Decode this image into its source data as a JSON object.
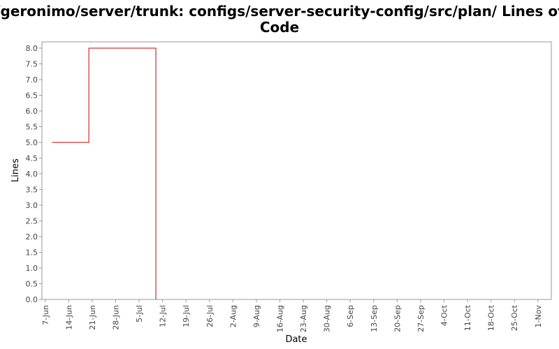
{
  "chart_data": {
    "type": "line",
    "title_lines": [
      "/geronimo/server/trunk: configs/server-security-config/src/plan/ Lines of",
      "Code"
    ],
    "xlabel": "Date",
    "ylabel": "Lines",
    "x_tick_labels": [
      "7-Jun",
      "14-Jun",
      "21-Jun",
      "28-Jun",
      "5-Jul",
      "12-Jul",
      "19-Jul",
      "26-Jul",
      "2-Aug",
      "9-Aug",
      "16-Aug",
      "23-Aug",
      "30-Aug",
      "6-Sep",
      "13-Sep",
      "20-Sep",
      "27-Sep",
      "4-Oct",
      "11-Oct",
      "18-Oct",
      "25-Oct",
      "1-Nov"
    ],
    "y_tick_labels": [
      "0.0",
      "0.5",
      "1.0",
      "1.5",
      "2.0",
      "2.5",
      "3.0",
      "3.5",
      "4.0",
      "4.5",
      "5.0",
      "5.5",
      "6.0",
      "6.5",
      "7.0",
      "7.5",
      "8.0"
    ],
    "ylim": [
      0,
      8.2
    ],
    "xlim": [
      "2007-06-06",
      "2007-11-05"
    ],
    "step": true,
    "grid": false,
    "legend": "none",
    "series": [
      {
        "color": "#cc0000",
        "points": [
          {
            "x": "2007-06-09",
            "y": 5
          },
          {
            "x": "2007-06-20",
            "y": 8
          },
          {
            "x": "2007-07-10",
            "y": 0
          }
        ]
      }
    ]
  }
}
